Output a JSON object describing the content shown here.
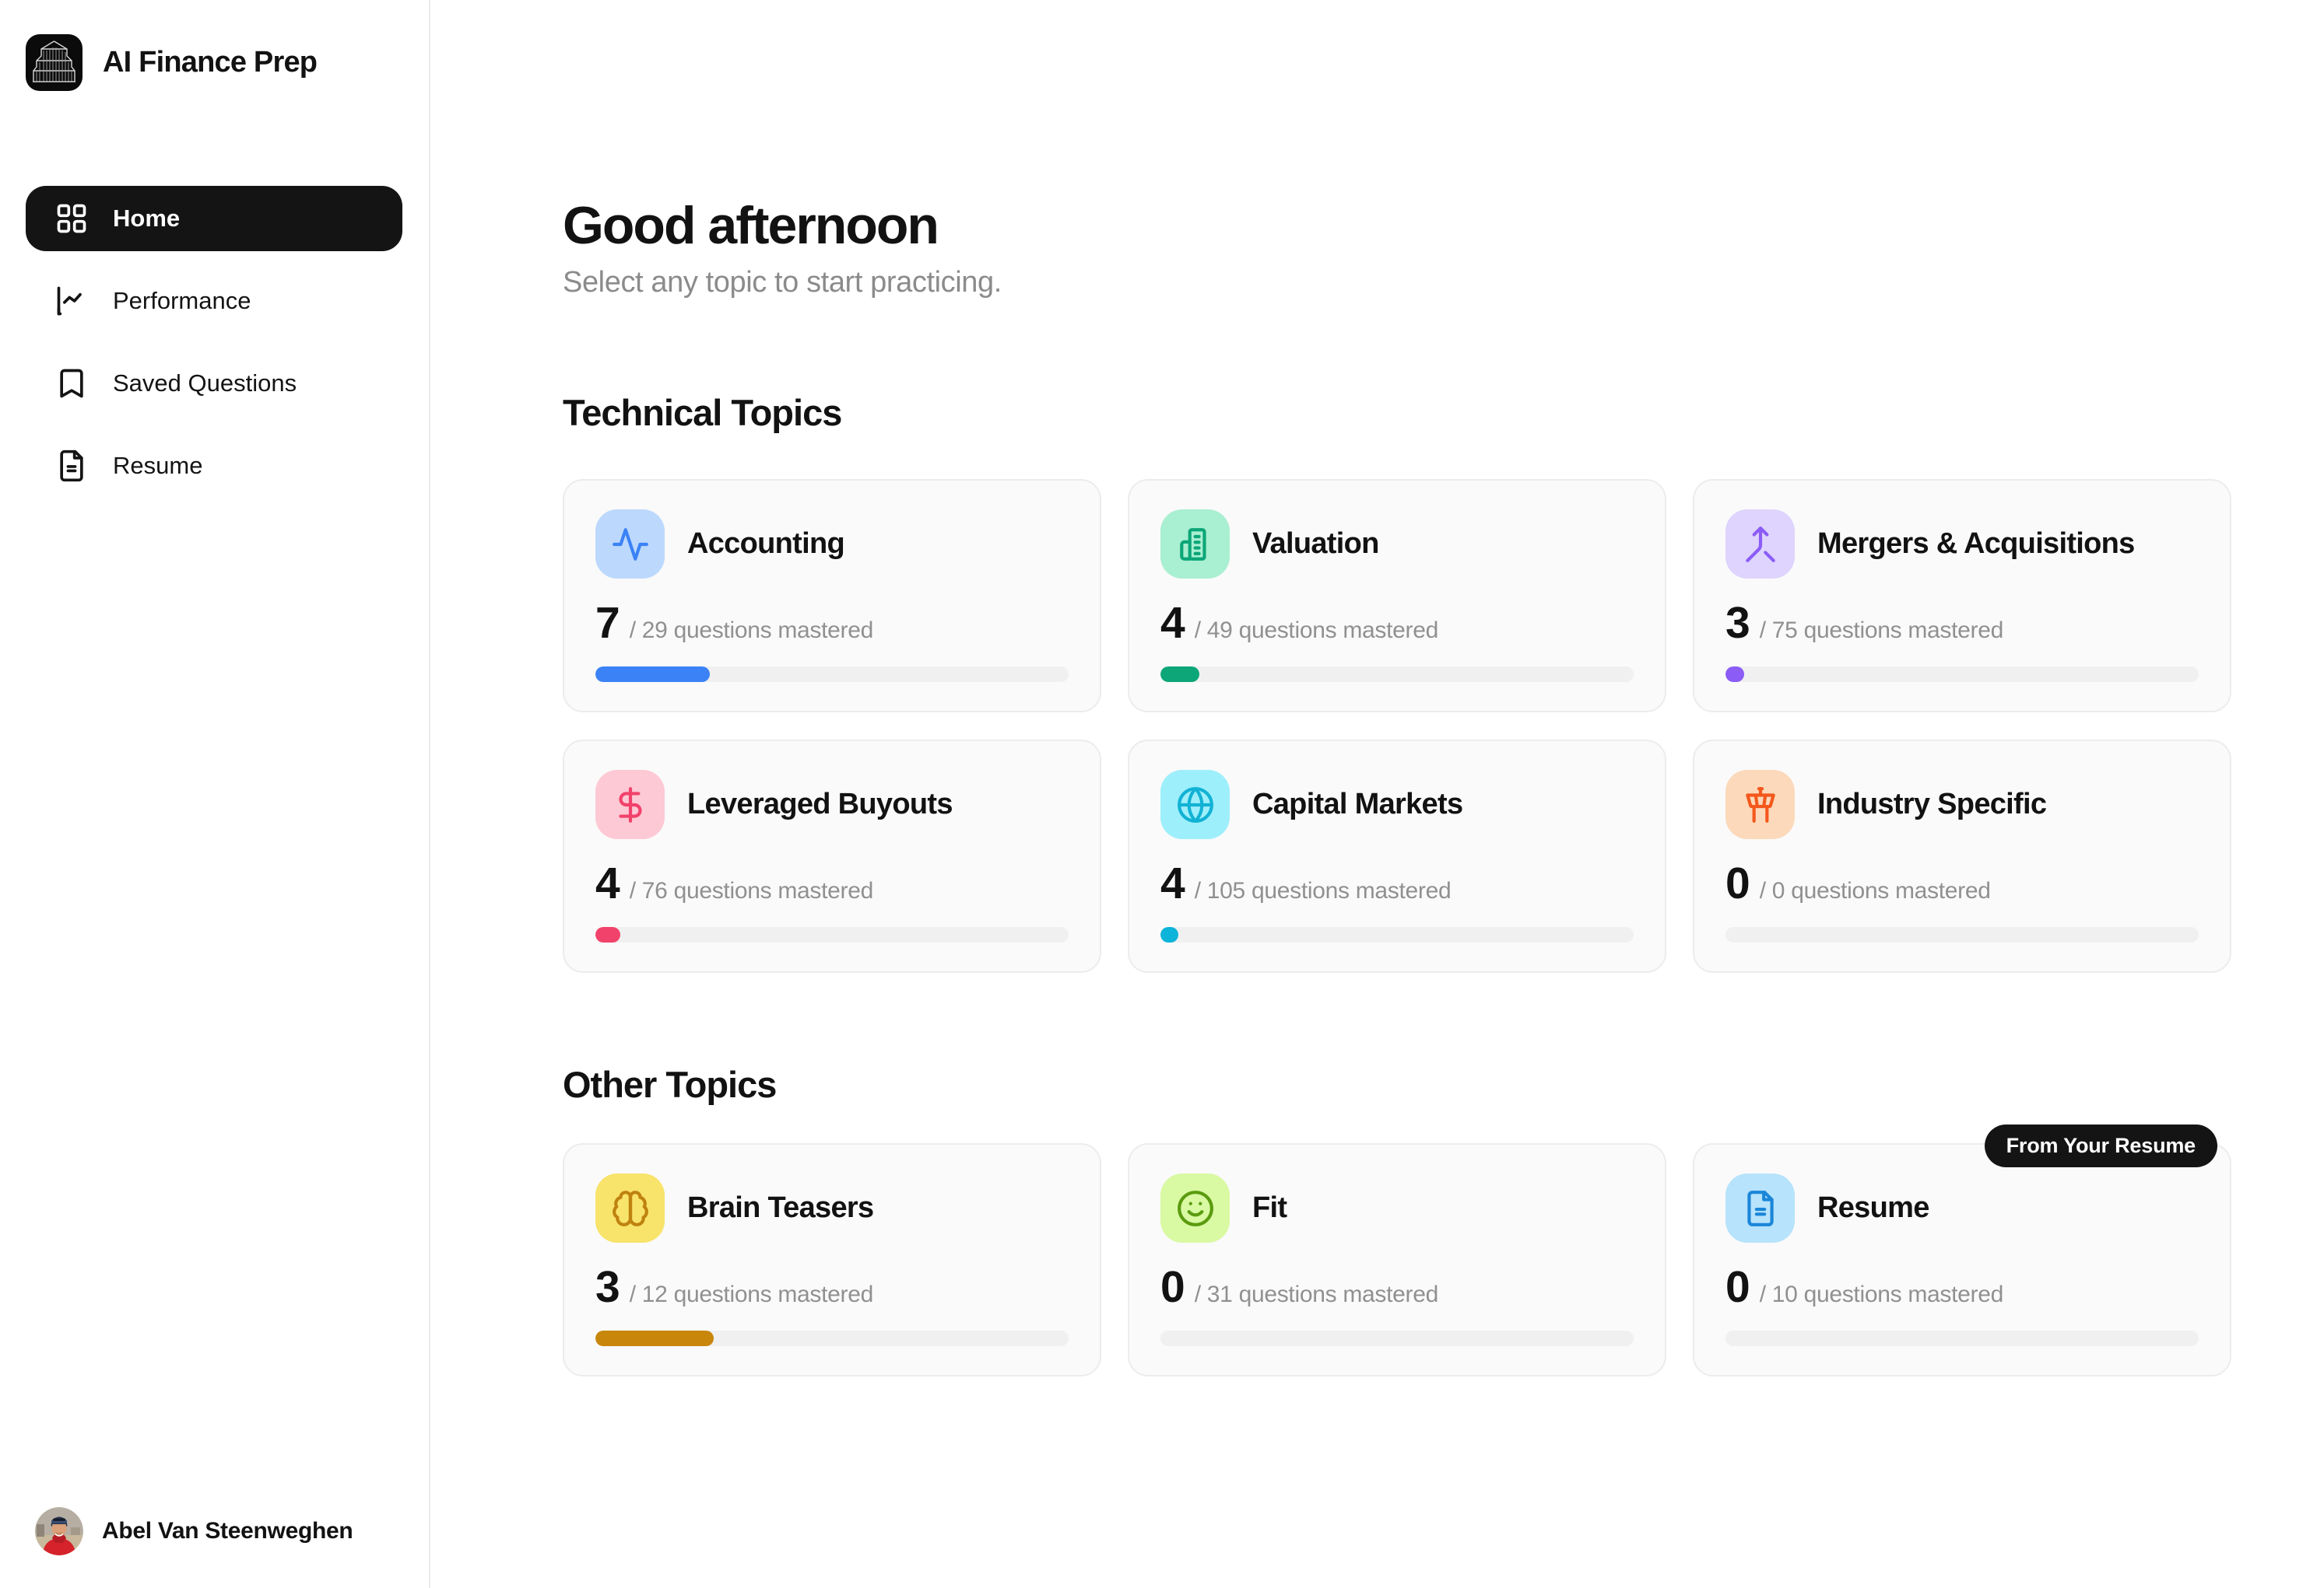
{
  "app": {
    "name": "AI Finance Prep"
  },
  "sidebar": {
    "items": [
      {
        "label": "Home",
        "icon": "grid-icon",
        "active": true
      },
      {
        "label": "Performance",
        "icon": "line-chart-icon",
        "active": false
      },
      {
        "label": "Saved Questions",
        "icon": "bookmark-icon",
        "active": false
      },
      {
        "label": "Resume",
        "icon": "file-icon",
        "active": false
      }
    ],
    "user": {
      "name": "Abel Van Steenweghen"
    }
  },
  "main": {
    "greeting": "Good afternoon",
    "subtitle": "Select any topic to start practicing.",
    "stat_suffix": "questions mastered",
    "sections": [
      {
        "title": "Technical Topics",
        "cards": [
          {
            "name": "Accounting",
            "icon": "activity-icon",
            "mastered": 7,
            "total": 29,
            "colors": {
              "tile": "#bcd9fd",
              "icon": "#3b82f6",
              "bar": "#3b82f6"
            }
          },
          {
            "name": "Valuation",
            "icon": "building-icon",
            "mastered": 4,
            "total": 49,
            "colors": {
              "tile": "#a9efd1",
              "icon": "#0ca678",
              "bar": "#0ca678"
            }
          },
          {
            "name": "Mergers & Acquisitions",
            "icon": "merge-icon",
            "mastered": 3,
            "total": 75,
            "colors": {
              "tile": "#ded4fe",
              "icon": "#8b5cf6",
              "bar": "#8b5cf6"
            }
          },
          {
            "name": "Leveraged Buyouts",
            "icon": "dollar-icon",
            "mastered": 4,
            "total": 76,
            "colors": {
              "tile": "#fdc9d4",
              "icon": "#f1426b",
              "bar": "#f1426b"
            }
          },
          {
            "name": "Capital Markets",
            "icon": "globe-icon",
            "mastered": 4,
            "total": 105,
            "colors": {
              "tile": "#9deffb",
              "icon": "#12b2d4",
              "bar": "#0cb4d9"
            }
          },
          {
            "name": "Industry Specific",
            "icon": "tower-icon",
            "mastered": 0,
            "total": 0,
            "colors": {
              "tile": "#fcd9ba",
              "icon": "#f4581c",
              "bar": "#f4581c"
            }
          }
        ]
      },
      {
        "title": "Other Topics",
        "cards": [
          {
            "name": "Brain Teasers",
            "icon": "brain-icon",
            "mastered": 3,
            "total": 12,
            "colors": {
              "tile": "#f8e36b",
              "icon": "#bf820f",
              "bar": "#c8860b"
            }
          },
          {
            "name": "Fit",
            "icon": "smile-icon",
            "mastered": 0,
            "total": 31,
            "colors": {
              "tile": "#d9f9a3",
              "icon": "#5b9b10",
              "bar": "#5b9b10"
            }
          },
          {
            "name": "Resume",
            "icon": "file-icon",
            "mastered": 0,
            "total": 10,
            "colors": {
              "tile": "#b7e3fc",
              "icon": "#1b86d8",
              "bar": "#1b86d8"
            },
            "badge": "From Your Resume"
          }
        ]
      }
    ]
  }
}
